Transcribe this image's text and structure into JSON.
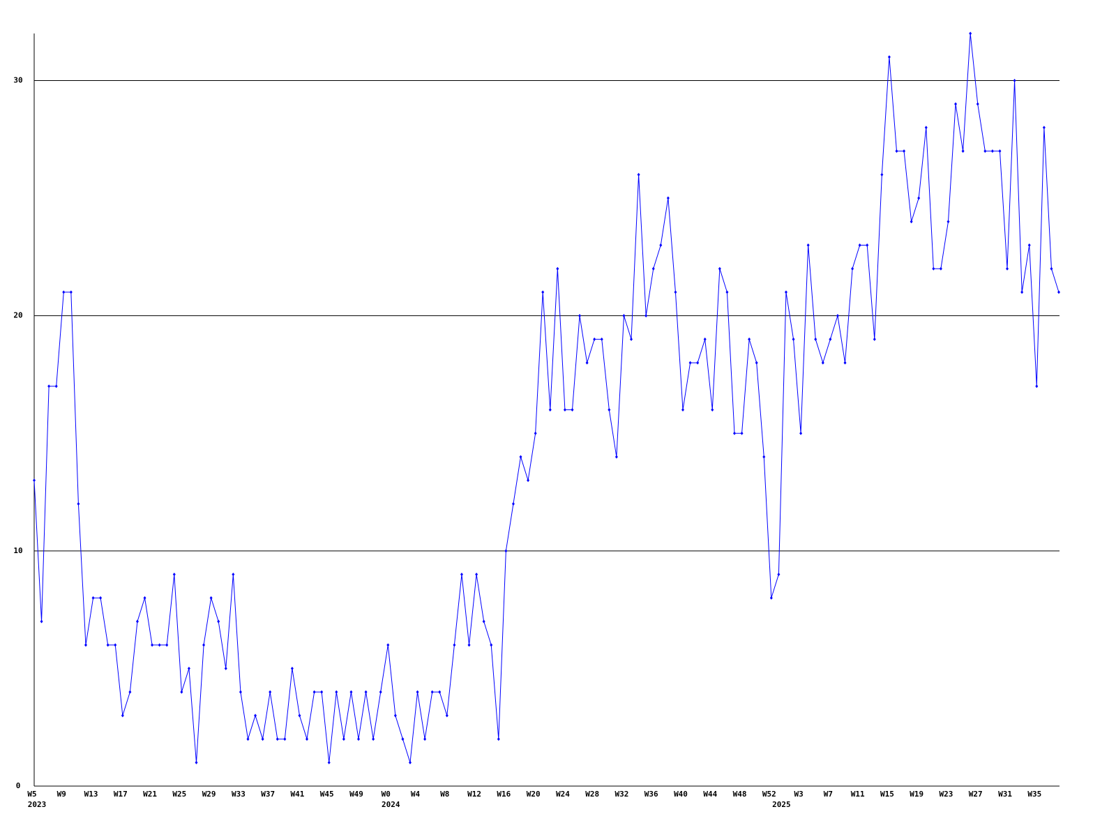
{
  "chart_data": {
    "type": "line",
    "categories": [
      "W5",
      null,
      null,
      null,
      "W9",
      null,
      null,
      null,
      "W13",
      null,
      null,
      null,
      "W17",
      null,
      null,
      null,
      "W21",
      null,
      null,
      null,
      "W25",
      null,
      null,
      null,
      "W29",
      null,
      null,
      null,
      "W33",
      null,
      null,
      null,
      "W37",
      null,
      null,
      null,
      "W41",
      null,
      null,
      null,
      "W45",
      null,
      null,
      null,
      "W49",
      null,
      null,
      null,
      "W0",
      null,
      null,
      null,
      "W4",
      null,
      null,
      null,
      "W8",
      null,
      null,
      null,
      "W12",
      null,
      null,
      null,
      "W16",
      null,
      null,
      null,
      "W20",
      null,
      null,
      null,
      "W24",
      null,
      null,
      null,
      "W28",
      null,
      null,
      null,
      "W32",
      null,
      null,
      null,
      "W36",
      null,
      null,
      null,
      "W40",
      null,
      null,
      null,
      "W44",
      null,
      null,
      null,
      "W48",
      null,
      null,
      null,
      "W52",
      null,
      null,
      null,
      "W3",
      null,
      null,
      null,
      "W7",
      null,
      null,
      null,
      "W11",
      null,
      null,
      null,
      "W15",
      null,
      null,
      null,
      "W19",
      null,
      null,
      null,
      "W23",
      null,
      null,
      null,
      "W27",
      null,
      null,
      null,
      "W31",
      null,
      null,
      null,
      "W35",
      null,
      null,
      null
    ],
    "year_labels": [
      "2023",
      null,
      null,
      null,
      null,
      null,
      null,
      null,
      null,
      null,
      null,
      null,
      null,
      null,
      null,
      null,
      null,
      null,
      null,
      null,
      null,
      null,
      null,
      null,
      null,
      null,
      null,
      null,
      null,
      null,
      null,
      null,
      null,
      null,
      null,
      null,
      null,
      null,
      null,
      null,
      null,
      null,
      null,
      null,
      null,
      null,
      null,
      null,
      "2024",
      null,
      null,
      null,
      null,
      null,
      null,
      null,
      null,
      null,
      null,
      null,
      null,
      null,
      null,
      null,
      null,
      null,
      null,
      null,
      null,
      null,
      null,
      null,
      null,
      null,
      null,
      null,
      null,
      null,
      null,
      null,
      null,
      null,
      null,
      null,
      null,
      null,
      null,
      null,
      null,
      null,
      null,
      null,
      null,
      null,
      null,
      null,
      null,
      null,
      null,
      null,
      null,
      "2025",
      null,
      null,
      null,
      null,
      null,
      null,
      null,
      null,
      null,
      null,
      null,
      null,
      null,
      null,
      null,
      null,
      null,
      null,
      null,
      null,
      null,
      null,
      null,
      null,
      null,
      null,
      null,
      null,
      null,
      null,
      null,
      null,
      null,
      null,
      null,
      null,
      null
    ],
    "series": [
      {
        "color": "#0000ff",
        "values": [
          13,
          7,
          17,
          17,
          21,
          21,
          12,
          6,
          8,
          8,
          6,
          6,
          3,
          4,
          7,
          8,
          6,
          6,
          6,
          9,
          4,
          5,
          1,
          6,
          8,
          7,
          5,
          9,
          4,
          2,
          3,
          2,
          4,
          2,
          2,
          5,
          3,
          2,
          4,
          4,
          1,
          4,
          2,
          4,
          2,
          4,
          2,
          4,
          6,
          3,
          2,
          1,
          4,
          2,
          4,
          4,
          3,
          6,
          9,
          6,
          9,
          7,
          6,
          2,
          10,
          12,
          14,
          13,
          15,
          21,
          16,
          22,
          16,
          16,
          20,
          18,
          19,
          19,
          16,
          14,
          20,
          19,
          26,
          20,
          22,
          23,
          25,
          21,
          16,
          18,
          18,
          19,
          16,
          22,
          21,
          15,
          15,
          19,
          18,
          14,
          8,
          9,
          21,
          19,
          15,
          23,
          19,
          18,
          19,
          20,
          18,
          22,
          23,
          23,
          19,
          26,
          31,
          27,
          27,
          24,
          25,
          28,
          22,
          22,
          24,
          29,
          27,
          32,
          29,
          27,
          27,
          27,
          22,
          30,
          21,
          23,
          17,
          28,
          22,
          21
        ]
      }
    ],
    "ylim": [
      0,
      32
    ],
    "yticks": [
      0,
      10,
      20,
      30
    ],
    "grid": true
  }
}
